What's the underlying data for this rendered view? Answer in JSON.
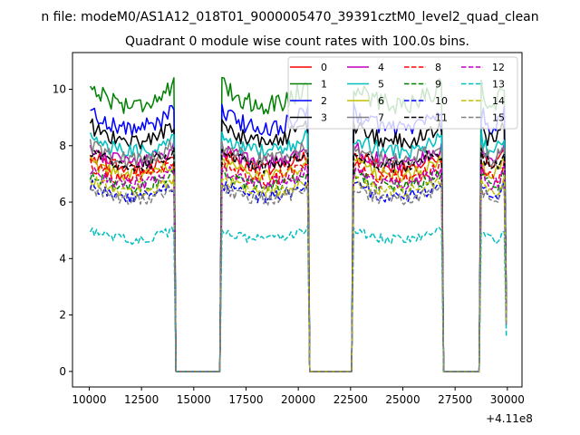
{
  "figure": {
    "suptitle": "n file: modeM0/AS1A12_018T01_9000005470_39391cztM0_level2_quad_clean",
    "offset_label": "+4.11e8"
  },
  "chart_data": {
    "type": "line",
    "title": "Quadrant 0 module wise count rates with 100.0s bins.",
    "xlabel": "",
    "ylabel": "",
    "xlim": [
      9200,
      30700
    ],
    "ylim": [
      -0.55,
      11.3
    ],
    "x_offset": 411000000,
    "x_ticks": [
      10000,
      12500,
      15000,
      17500,
      20000,
      22500,
      25000,
      27500,
      30000
    ],
    "x_tick_labels": [
      "10000",
      "12500",
      "15000",
      "17500",
      "20000",
      "22500",
      "25000",
      "27500",
      "30000"
    ],
    "y_ticks": [
      0,
      2,
      4,
      6,
      8,
      10
    ],
    "y_tick_labels": [
      "0",
      "2",
      "4",
      "6",
      "8",
      "10"
    ],
    "grid": false,
    "legend_position": "top-right",
    "legend_columns": 4,
    "segments": [
      {
        "start": 10050,
        "end": 14050,
        "gap_after": [
          14150,
          16250
        ]
      },
      {
        "start": 16350,
        "end": 20450,
        "gap_after": [
          20550,
          22550
        ]
      },
      {
        "start": 22650,
        "end": 26850,
        "gap_after": [
          26950,
          28650
        ]
      },
      {
        "start": 28750,
        "end": 29850,
        "gap_after": null
      }
    ],
    "series": [
      {
        "name": "0",
        "color": "#ff0000",
        "dash": "solid",
        "level": 7.7
      },
      {
        "name": "1",
        "color": "#008000",
        "dash": "solid",
        "level": 10.1
      },
      {
        "name": "2",
        "color": "#0000ff",
        "dash": "solid",
        "level": 9.2
      },
      {
        "name": "3",
        "color": "#000000",
        "dash": "solid",
        "level": 8.7
      },
      {
        "name": "4",
        "color": "#bf00bf",
        "dash": "solid",
        "level": 7.9
      },
      {
        "name": "5",
        "color": "#00bfbf",
        "dash": "solid",
        "level": 8.3
      },
      {
        "name": "6",
        "color": "#bfbf00",
        "dash": "solid",
        "level": 7.4
      },
      {
        "name": "7",
        "color": "#808080",
        "dash": "solid",
        "level": 8.0
      },
      {
        "name": "8",
        "color": "#ff0000",
        "dash": "dashed",
        "level": 7.3
      },
      {
        "name": "9",
        "color": "#008000",
        "dash": "dashed",
        "level": 7.0
      },
      {
        "name": "10",
        "color": "#0000ff",
        "dash": "dashed",
        "level": 6.6
      },
      {
        "name": "11",
        "color": "#000000",
        "dash": "dashed",
        "level": 7.8
      },
      {
        "name": "12",
        "color": "#bf00bf",
        "dash": "dashed",
        "level": 7.1
      },
      {
        "name": "13",
        "color": "#00bfbf",
        "dash": "dashed",
        "level": 5.0
      },
      {
        "name": "14",
        "color": "#bfbf00",
        "dash": "dashed",
        "level": 6.8
      },
      {
        "name": "15",
        "color": "#808080",
        "dash": "dashed",
        "level": 6.5
      }
    ]
  }
}
